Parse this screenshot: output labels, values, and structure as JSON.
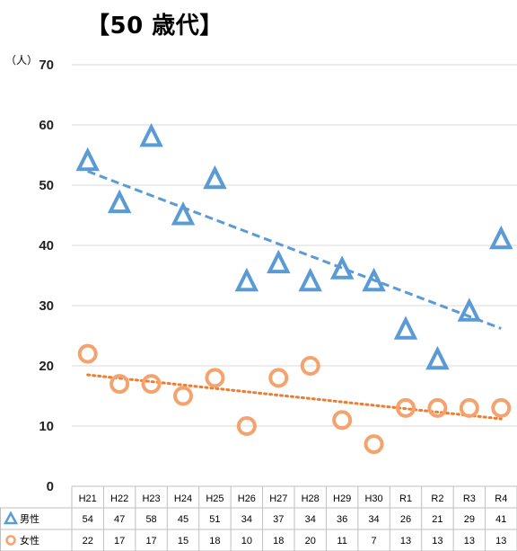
{
  "title": "【50 歳代】",
  "unit_label": "（人）",
  "chart_data": {
    "type": "scatter",
    "title": "【50 歳代】",
    "ylabel": "（人）",
    "ylim": [
      0,
      70
    ],
    "yticks": [
      0,
      10,
      20,
      30,
      40,
      50,
      60,
      70
    ],
    "grid": true,
    "categories": [
      "H21",
      "H22",
      "H23",
      "H24",
      "H25",
      "H26",
      "H27",
      "H28",
      "H29",
      "H30",
      "R1",
      "R2",
      "R3",
      "R4"
    ],
    "series": [
      {
        "name": "男性",
        "marker": "triangle",
        "color": "#5b9bd5",
        "values": [
          54,
          47,
          58,
          45,
          51,
          34,
          37,
          34,
          36,
          34,
          26,
          21,
          29,
          41
        ],
        "trendline": {
          "style": "dashed",
          "color": "#5b9bd5",
          "start": 52.3,
          "end": 26.2
        }
      },
      {
        "name": "女性",
        "marker": "circle",
        "color": "#f4a36f",
        "values": [
          22,
          17,
          17,
          15,
          18,
          10,
          18,
          20,
          11,
          7,
          13,
          13,
          13,
          13
        ],
        "trendline": {
          "style": "dotted",
          "color": "#ed7d31",
          "start": 18.5,
          "end": 11.2
        }
      }
    ]
  }
}
